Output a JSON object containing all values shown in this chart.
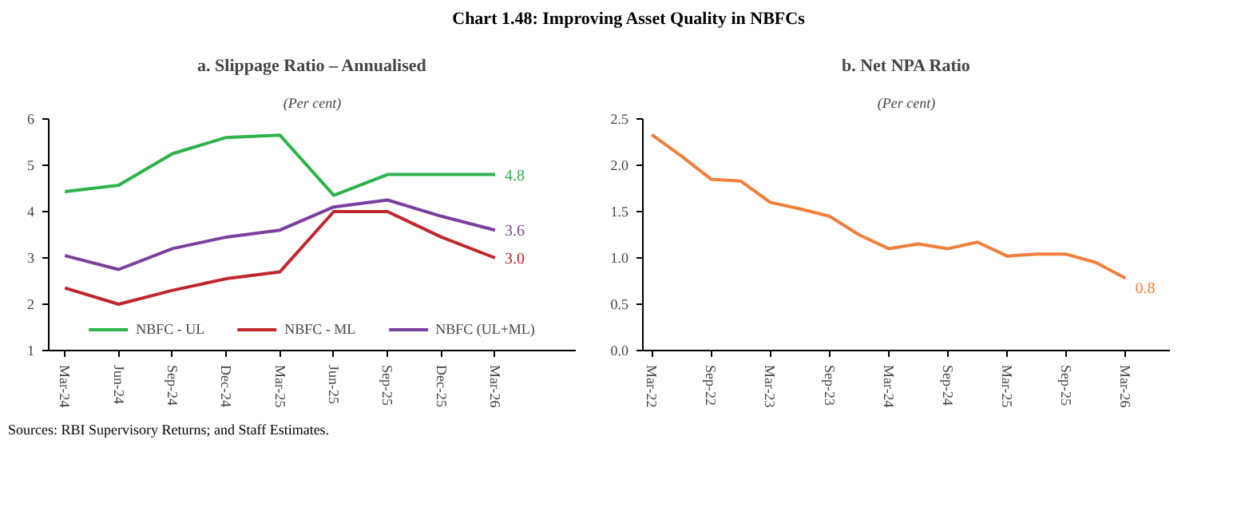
{
  "chart_data": [
    {
      "type": "other",
      "title": "Chart 1.48: Improving Asset Quality in NBFCs",
      "annotations": [
        "Sources: RBI Supervisory Returns; and Staff Estimates."
      ]
    },
    {
      "type": "line",
      "title": "a. Slippage Ratio – Annualised",
      "subtitle": "(Per cent)",
      "categories": [
        "Mar-24",
        "Jun-24",
        "Sep-24",
        "Dec-24",
        "Mar-25",
        "Jun-25",
        "Sep-25",
        "Dec-25",
        "Mar-26"
      ],
      "series": [
        {
          "name": "NBFC - UL",
          "color": "#2db34a",
          "values": [
            4.43,
            4.57,
            5.25,
            5.6,
            5.65,
            4.35,
            4.8,
            4.8,
            4.8
          ],
          "value_labels": [
            null,
            null,
            null,
            null,
            null,
            null,
            null,
            null,
            "4.8"
          ]
        },
        {
          "name": "NBFC - ML",
          "color": "#c0272d",
          "values": [
            2.35,
            2.0,
            2.3,
            2.55,
            2.7,
            4.0,
            4.0,
            3.45,
            3.0
          ],
          "value_labels": [
            null,
            null,
            null,
            null,
            null,
            null,
            null,
            null,
            "3.0"
          ]
        },
        {
          "name": "NBFC (UL+ML)",
          "color": "#7b3f9e",
          "values": [
            3.05,
            2.75,
            3.2,
            3.45,
            3.6,
            4.1,
            4.25,
            3.9,
            3.6
          ],
          "value_labels": [
            null,
            null,
            null,
            null,
            null,
            null,
            null,
            null,
            "3.6"
          ]
        }
      ],
      "ylim": [
        1,
        6
      ],
      "yticks": [
        1,
        2,
        3,
        4,
        5,
        6
      ],
      "grid": false,
      "legend": "bottom"
    },
    {
      "type": "line",
      "title": "b. Net NPA Ratio",
      "subtitle": "(Per cent)",
      "categories": [
        "Mar-22",
        null,
        "Sep-22",
        null,
        "Mar-23",
        null,
        "Sep-23",
        null,
        "Mar-24",
        null,
        "Sep-24",
        null,
        "Mar-25",
        null,
        "Sep-25",
        null,
        "Mar-26"
      ],
      "series": [
        {
          "color": "#f07f3c",
          "values": [
            2.33,
            2.1,
            1.85,
            1.83,
            1.6,
            1.53,
            1.45,
            1.25,
            1.1,
            1.15,
            1.1,
            1.17,
            1.02,
            1.04,
            1.04,
            0.95,
            0.78
          ],
          "value_labels": [
            null,
            null,
            null,
            null,
            null,
            null,
            null,
            null,
            null,
            null,
            null,
            null,
            null,
            null,
            null,
            null,
            "0.8"
          ]
        }
      ],
      "ylim": [
        0,
        2.5
      ],
      "yticks": [
        {
          "value": 0,
          "label": "0.0"
        },
        {
          "value": 0.5,
          "label": "0.5"
        },
        {
          "value": 1,
          "label": "1.0"
        },
        {
          "value": 1.5,
          "label": "1.5"
        },
        {
          "value": 2,
          "label": "2.0"
        },
        {
          "value": 2.5,
          "label": "2.5"
        }
      ],
      "grid": false,
      "legend": false
    }
  ]
}
